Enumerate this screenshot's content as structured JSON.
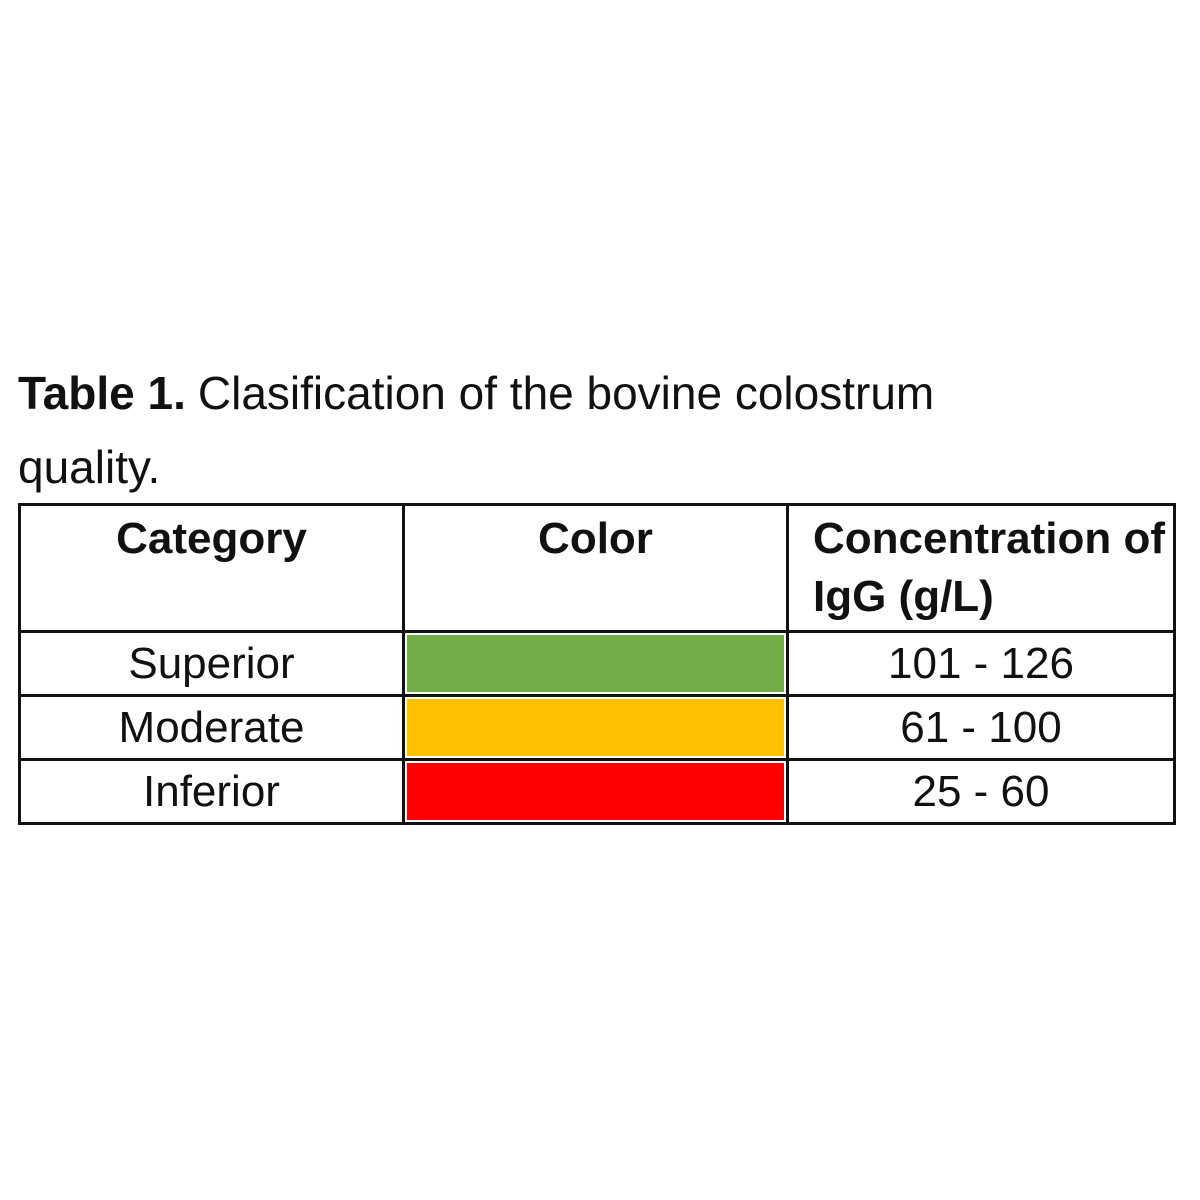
{
  "caption": {
    "label": "Table 1.",
    "text": "Clasification of the bovine colostrum quality."
  },
  "table": {
    "headers": [
      "Category",
      "Color",
      "Concentration of IgG (g/L)"
    ],
    "rows": [
      {
        "category": "Superior",
        "color": "#70ad47",
        "concentration": "101 - 126"
      },
      {
        "category": "Moderate",
        "color": "#ffc000",
        "concentration": "61 - 100"
      },
      {
        "category": "Inferior",
        "color": "#ff0000",
        "concentration": "25 - 60"
      }
    ]
  }
}
